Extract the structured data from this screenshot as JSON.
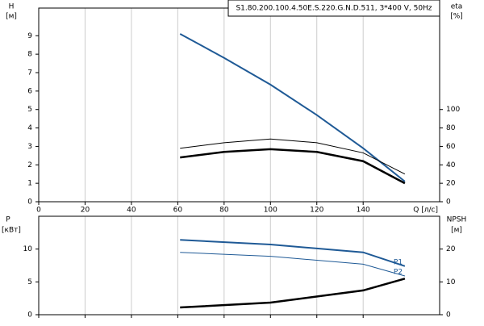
{
  "chart_data": [
    {
      "type": "line",
      "title": "S1.80.200.100.4.50E.S.220.G.N.D.511, 3*400 V, 50Hz",
      "ylabel": "H",
      "yunit": "[м]",
      "y2label": "eta",
      "y2unit": "[%]",
      "xlabel": "Q [л/с]",
      "xlim": [
        0,
        173
      ],
      "xticks": [
        0,
        20,
        40,
        60,
        80,
        100,
        120,
        140
      ],
      "ylim": [
        0,
        10.5
      ],
      "yticks": [
        0,
        1,
        2,
        3,
        4,
        5,
        6,
        7,
        8,
        9
      ],
      "y2lim": [
        0,
        210
      ],
      "y2ticks": [
        0,
        20,
        40,
        60,
        80,
        100
      ],
      "grid": true,
      "show_xtick_labels": true,
      "series": [
        {
          "color": "#1f5a96",
          "width": 2,
          "axis": "y",
          "x": [
            61,
            80,
            100,
            120,
            140,
            158
          ],
          "values": [
            9.1,
            7.8,
            6.35,
            4.7,
            2.9,
            1.1
          ]
        },
        {
          "color": "#000000",
          "width": 1,
          "axis": "y2",
          "x": [
            61,
            80,
            100,
            120,
            140,
            158
          ],
          "values": [
            58,
            64,
            68,
            64,
            53,
            30
          ]
        },
        {
          "color": "#000000",
          "width": 2.5,
          "axis": "y2",
          "x": [
            61,
            80,
            100,
            120,
            140,
            158
          ],
          "values": [
            48,
            54,
            57,
            54,
            44,
            20
          ]
        }
      ]
    },
    {
      "type": "line",
      "ylabel": "P",
      "yunit": "[кВт]",
      "y2label": "NPSH",
      "y2unit": "[м]",
      "xlim": [
        0,
        173
      ],
      "xticks": [
        0,
        20,
        40,
        60,
        80,
        100,
        120,
        140
      ],
      "ylim": [
        0,
        15
      ],
      "yticks": [
        0,
        5,
        10
      ],
      "y2lim": [
        0,
        30
      ],
      "y2ticks": [
        0,
        10,
        20
      ],
      "grid": true,
      "show_xtick_labels": false,
      "series": [
        {
          "name": "P1",
          "color": "#1f5a96",
          "width": 2,
          "axis": "y",
          "x": [
            61,
            100,
            140,
            158
          ],
          "values": [
            11.4,
            10.7,
            9.5,
            7.4
          ]
        },
        {
          "name": "P2",
          "color": "#1f5a96",
          "width": 1,
          "axis": "y",
          "x": [
            61,
            100,
            140,
            158
          ],
          "values": [
            9.5,
            8.9,
            7.7,
            5.9
          ]
        },
        {
          "color": "#000000",
          "width": 2.5,
          "axis": "y2",
          "x": [
            61,
            100,
            140,
            158
          ],
          "values": [
            2.2,
            3.7,
            7.4,
            11
          ]
        }
      ]
    }
  ]
}
